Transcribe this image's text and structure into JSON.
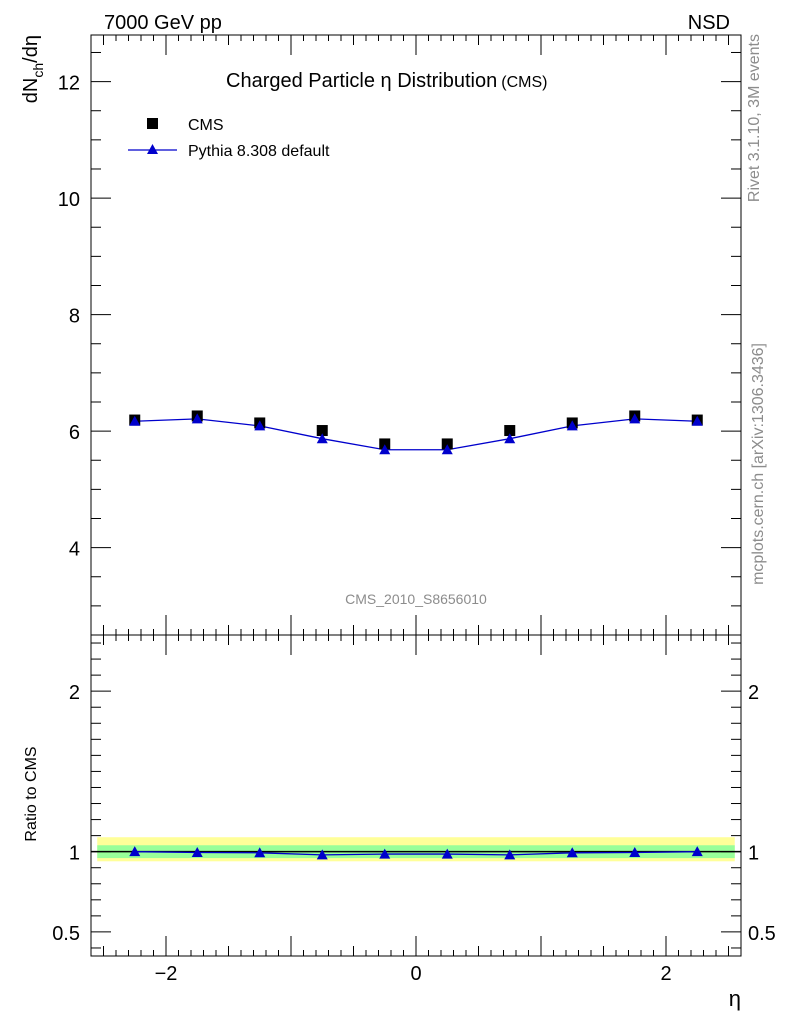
{
  "header": {
    "left": "7000 GeV pp",
    "right": "NSD"
  },
  "side_text": {
    "rivet": "Rivet 3.1.10,  3M events",
    "mcplots": "mcplots.cern.ch [arXiv:1306.3436]"
  },
  "watermark": "CMS_2010_S8656010",
  "chart_data": [
    {
      "type": "scatter",
      "title": "Charged Particle η Distribution",
      "title_suffix": "(CMS)",
      "ylabel_main": "dN",
      "ylabel_sub": "ch",
      "ylabel_tail": "/dη",
      "xlabel": "η",
      "xlim": [
        -2.6,
        2.6
      ],
      "ylim": [
        2.5,
        12.8
      ],
      "y_ticks": [
        "4",
        "6",
        "8",
        "10",
        "12"
      ],
      "x_ticks": [
        "−2",
        "0",
        "2"
      ],
      "legend_position": "top-left",
      "x": [
        -2.25,
        -1.75,
        -1.25,
        -0.75,
        -0.25,
        0.25,
        0.75,
        1.25,
        1.75,
        2.25
      ],
      "series": [
        {
          "name": "CMS",
          "marker": "square",
          "color": "#000000",
          "values": [
            6.19,
            6.26,
            6.14,
            6.01,
            5.78,
            5.78,
            6.01,
            6.14,
            6.26,
            6.19
          ]
        },
        {
          "name": "Pythia 8.308 default",
          "marker": "triangle",
          "color": "#0000cc",
          "values": [
            6.17,
            6.21,
            6.09,
            5.87,
            5.68,
            5.68,
            5.87,
            6.09,
            6.21,
            6.17
          ]
        }
      ]
    },
    {
      "type": "line",
      "ylabel": "Ratio to CMS",
      "xlabel": "η",
      "xlim": [
        -2.6,
        2.6
      ],
      "ylim": [
        0.35,
        2.35
      ],
      "y_ticks": [
        "0.5",
        "1",
        "2"
      ],
      "band_outer": [
        0.94,
        1.09
      ],
      "band_inner": [
        0.96,
        1.04
      ],
      "band_colors": {
        "outer": "#ffff99",
        "inner": "#99ff99"
      },
      "x": [
        -2.25,
        -1.75,
        -1.25,
        -0.75,
        -0.25,
        0.25,
        0.75,
        1.25,
        1.75,
        2.25
      ],
      "series": [
        {
          "name": "Pythia 8.308 default",
          "color": "#0000cc",
          "values": [
            1.0,
            0.995,
            0.993,
            0.98,
            0.985,
            0.985,
            0.98,
            0.993,
            0.995,
            1.0
          ]
        }
      ]
    }
  ]
}
